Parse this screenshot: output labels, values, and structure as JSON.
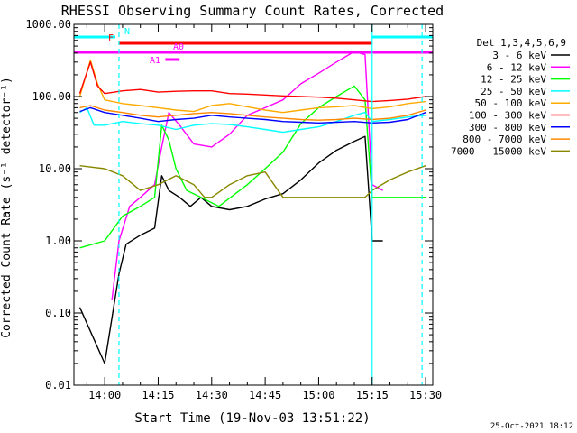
{
  "chart_data": {
    "type": "line",
    "title": "RHESSI Observing Summary Count Rates, Corrected",
    "xlabel": "Start Time (19-Nov-03 13:51:22)",
    "ylabel": "Corrected Count Rate (s⁻¹ detector⁻¹)",
    "y_scale": "log",
    "ylim": [
      0.01,
      1000
    ],
    "xlim": [
      "13:51:22",
      "15:32"
    ],
    "x_ticks": [
      "14:00",
      "14:15",
      "14:30",
      "14:45",
      "15:00",
      "15:15",
      "15:30"
    ],
    "y_ticks": [
      "0.01",
      "0.10",
      "1.00",
      "10.00",
      "100.00",
      "1000.00"
    ],
    "legend_title": "Det 1,3,4,5,6,9",
    "legend_position": "right",
    "timestamp": "25-Oct-2021 18:12",
    "series": [
      {
        "name": "3 - 6 keV",
        "color": "#000000",
        "points": [
          [
            "13:53",
            0.12
          ],
          [
            "14:00",
            0.02
          ],
          [
            "14:04",
            0.35
          ],
          [
            "14:06",
            0.9
          ],
          [
            "14:10",
            1.2
          ],
          [
            "14:14",
            1.5
          ],
          [
            "14:16",
            8
          ],
          [
            "14:18",
            5
          ],
          [
            "14:21",
            4
          ],
          [
            "14:24",
            3
          ],
          [
            "14:27",
            4
          ],
          [
            "14:30",
            3
          ],
          [
            "14:35",
            2.7
          ],
          [
            "14:40",
            3
          ],
          [
            "14:45",
            3.8
          ],
          [
            "14:50",
            4.5
          ],
          [
            "14:55",
            7
          ],
          [
            "15:00",
            12
          ],
          [
            "15:05",
            18
          ],
          [
            "15:10",
            24
          ],
          [
            "15:13",
            28
          ],
          [
            "15:15",
            1.0
          ],
          [
            "15:18",
            1.0
          ]
        ]
      },
      {
        "name": "6 - 12 keV",
        "color": "#ff00ff",
        "points": [
          [
            "14:02",
            0.15
          ],
          [
            "14:04",
            1.0
          ],
          [
            "14:07",
            3
          ],
          [
            "14:10",
            4
          ],
          [
            "14:14",
            6
          ],
          [
            "14:16",
            20
          ],
          [
            "14:18",
            60
          ],
          [
            "14:21",
            40
          ],
          [
            "14:25",
            22
          ],
          [
            "14:30",
            20
          ],
          [
            "14:35",
            30
          ],
          [
            "14:40",
            55
          ],
          [
            "14:45",
            70
          ],
          [
            "14:50",
            90
          ],
          [
            "14:55",
            150
          ],
          [
            "15:00",
            210
          ],
          [
            "15:05",
            300
          ],
          [
            "15:10",
            420
          ],
          [
            "15:13",
            380
          ],
          [
            "15:15",
            6
          ],
          [
            "15:18",
            5
          ]
        ]
      },
      {
        "name": "12 - 25 keV",
        "color": "#00ff00",
        "points": [
          [
            "13:53",
            0.8
          ],
          [
            "14:00",
            1.0
          ],
          [
            "14:05",
            2.2
          ],
          [
            "14:10",
            3
          ],
          [
            "14:14",
            4
          ],
          [
            "14:16",
            40
          ],
          [
            "14:18",
            25
          ],
          [
            "14:20",
            10
          ],
          [
            "14:23",
            5
          ],
          [
            "14:27",
            4
          ],
          [
            "14:32",
            3
          ],
          [
            "14:40",
            6
          ],
          [
            "14:45",
            10
          ],
          [
            "14:50",
            17
          ],
          [
            "14:55",
            42
          ],
          [
            "15:00",
            70
          ],
          [
            "15:05",
            100
          ],
          [
            "15:10",
            140
          ],
          [
            "15:13",
            90
          ],
          [
            "15:15",
            4
          ],
          [
            "15:30",
            4
          ]
        ]
      },
      {
        "name": "25 - 50 keV",
        "color": "#00ffff",
        "points": [
          [
            "13:53",
            60
          ],
          [
            "13:55",
            70
          ],
          [
            "13:57",
            40
          ],
          [
            "14:00",
            40
          ],
          [
            "14:05",
            45
          ],
          [
            "14:10",
            42
          ],
          [
            "14:15",
            40
          ],
          [
            "14:20",
            35
          ],
          [
            "14:25",
            40
          ],
          [
            "14:30",
            42
          ],
          [
            "14:35",
            41
          ],
          [
            "14:40",
            38
          ],
          [
            "14:45",
            35
          ],
          [
            "14:50",
            32
          ],
          [
            "14:55",
            35
          ],
          [
            "15:00",
            38
          ],
          [
            "15:05",
            45
          ],
          [
            "15:10",
            55
          ],
          [
            "15:13",
            60
          ],
          [
            "15:15",
            45
          ],
          [
            "15:20",
            48
          ],
          [
            "15:25",
            52
          ],
          [
            "15:30",
            55
          ]
        ]
      },
      {
        "name": "50 - 100 keV",
        "color": "#ffaa00",
        "points": [
          [
            "13:53",
            100
          ],
          [
            "13:56",
            320
          ],
          [
            "13:58",
            150
          ],
          [
            "14:00",
            90
          ],
          [
            "14:05",
            80
          ],
          [
            "14:10",
            75
          ],
          [
            "14:15",
            70
          ],
          [
            "14:20",
            65
          ],
          [
            "14:25",
            62
          ],
          [
            "14:30",
            75
          ],
          [
            "14:35",
            80
          ],
          [
            "14:40",
            72
          ],
          [
            "14:45",
            65
          ],
          [
            "14:50",
            60
          ],
          [
            "14:55",
            65
          ],
          [
            "15:00",
            70
          ],
          [
            "15:05",
            72
          ],
          [
            "15:10",
            75
          ],
          [
            "15:15",
            68
          ],
          [
            "15:20",
            72
          ],
          [
            "15:25",
            80
          ],
          [
            "15:30",
            85
          ]
        ]
      },
      {
        "name": "100 - 300 keV",
        "color": "#ff0000",
        "points": [
          [
            "13:53",
            110
          ],
          [
            "13:56",
            300
          ],
          [
            "13:58",
            140
          ],
          [
            "14:00",
            110
          ],
          [
            "14:05",
            120
          ],
          [
            "14:10",
            125
          ],
          [
            "14:15",
            115
          ],
          [
            "14:20",
            118
          ],
          [
            "14:25",
            120
          ],
          [
            "14:30",
            120
          ],
          [
            "14:35",
            110
          ],
          [
            "14:40",
            108
          ],
          [
            "14:45",
            105
          ],
          [
            "14:50",
            102
          ],
          [
            "14:55",
            100
          ],
          [
            "15:00",
            98
          ],
          [
            "15:05",
            95
          ],
          [
            "15:10",
            90
          ],
          [
            "15:15",
            85
          ],
          [
            "15:20",
            88
          ],
          [
            "15:25",
            92
          ],
          [
            "15:30",
            100
          ]
        ]
      },
      {
        "name": "300 - 800 keV",
        "color": "#0000ff",
        "points": [
          [
            "13:53",
            62
          ],
          [
            "13:56",
            70
          ],
          [
            "14:00",
            60
          ],
          [
            "14:05",
            55
          ],
          [
            "14:10",
            50
          ],
          [
            "14:15",
            45
          ],
          [
            "14:20",
            48
          ],
          [
            "14:25",
            50
          ],
          [
            "14:30",
            55
          ],
          [
            "14:35",
            52
          ],
          [
            "14:40",
            50
          ],
          [
            "14:45",
            48
          ],
          [
            "14:50",
            45
          ],
          [
            "14:55",
            44
          ],
          [
            "15:00",
            43
          ],
          [
            "15:05",
            44
          ],
          [
            "15:10",
            45
          ],
          [
            "15:15",
            43
          ],
          [
            "15:20",
            44
          ],
          [
            "15:25",
            48
          ],
          [
            "15:30",
            60
          ]
        ]
      },
      {
        "name": "800 - 7000 keV",
        "color": "#ff8800",
        "points": [
          [
            "13:53",
            70
          ],
          [
            "13:56",
            75
          ],
          [
            "14:00",
            65
          ],
          [
            "14:05",
            60
          ],
          [
            "14:10",
            55
          ],
          [
            "14:15",
            52
          ],
          [
            "14:20",
            55
          ],
          [
            "14:25",
            58
          ],
          [
            "14:30",
            60
          ],
          [
            "14:35",
            58
          ],
          [
            "14:40",
            55
          ],
          [
            "14:45",
            52
          ],
          [
            "14:50",
            50
          ],
          [
            "14:55",
            48
          ],
          [
            "15:00",
            47
          ],
          [
            "15:05",
            48
          ],
          [
            "15:10",
            50
          ],
          [
            "15:15",
            48
          ],
          [
            "15:20",
            50
          ],
          [
            "15:25",
            55
          ],
          [
            "15:30",
            65
          ]
        ]
      },
      {
        "name": "7000 - 15000 keV",
        "color": "#888800",
        "points": [
          [
            "13:53",
            11
          ],
          [
            "14:00",
            10
          ],
          [
            "14:05",
            8
          ],
          [
            "14:10",
            5
          ],
          [
            "14:15",
            6
          ],
          [
            "14:20",
            8
          ],
          [
            "14:25",
            6
          ],
          [
            "14:28",
            4
          ],
          [
            "14:30",
            4
          ],
          [
            "14:35",
            6
          ],
          [
            "14:40",
            8
          ],
          [
            "14:45",
            9
          ],
          [
            "14:50",
            4
          ],
          [
            "14:55",
            4
          ],
          [
            "15:00",
            4
          ],
          [
            "15:05",
            4
          ],
          [
            "15:10",
            4
          ],
          [
            "15:13",
            4
          ],
          [
            "15:15",
            5
          ],
          [
            "15:20",
            7
          ],
          [
            "15:25",
            9
          ],
          [
            "15:30",
            11
          ]
        ]
      }
    ],
    "flags": [
      {
        "label": "N",
        "color": "#00ffff",
        "segments": [
          [
            "13:51:22",
            "14:03"
          ],
          [
            "15:15",
            "15:32"
          ]
        ]
      },
      {
        "label": "F",
        "color": "#ff0000",
        "segments": [
          [
            "14:04",
            "15:15"
          ]
        ]
      },
      {
        "label": "A0",
        "color": "#ff00ff",
        "segments": [
          [
            "13:51:22",
            "15:32"
          ]
        ]
      },
      {
        "label": "A1",
        "color": "#ff00ff",
        "segments": [
          [
            "14:17",
            "14:21"
          ]
        ]
      }
    ],
    "markers": [
      "14:04",
      "15:15",
      "15:29"
    ]
  }
}
